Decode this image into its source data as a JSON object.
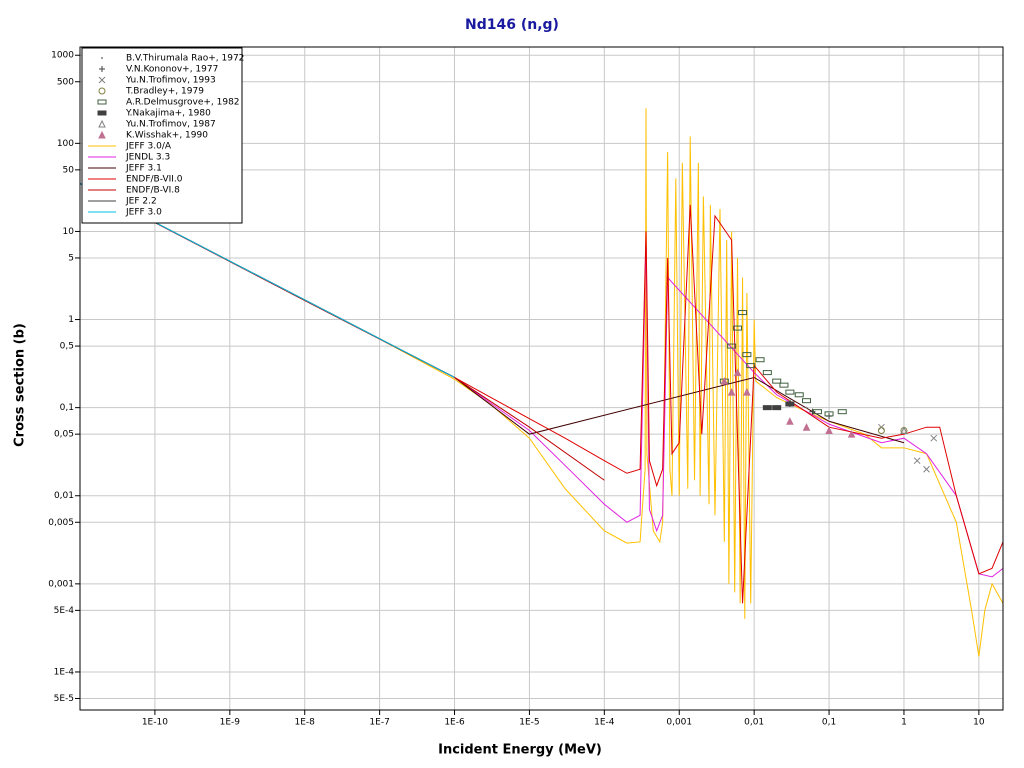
{
  "chart_data": {
    "type": "line",
    "title": "Nd146 (n,g)",
    "x_label": "Incident Energy (MeV)",
    "y_label": "Cross section (b)",
    "x_log": true,
    "y_log": true,
    "grid": true,
    "legend": "upper left",
    "xlim": [
      1e-11,
      21
    ],
    "ylim": [
      3.7e-05,
      1240
    ],
    "xticks": [
      {
        "value": 1e-10,
        "label": "1E-10"
      },
      {
        "value": 1e-09,
        "label": "1E-9"
      },
      {
        "value": 1e-08,
        "label": "1E-8"
      },
      {
        "value": 1e-07,
        "label": "1E-7"
      },
      {
        "value": 1e-06,
        "label": "1E-6"
      },
      {
        "value": 1e-05,
        "label": "1E-5"
      },
      {
        "value": 0.0001,
        "label": "1E-4"
      },
      {
        "value": 0.001,
        "label": "0,001"
      },
      {
        "value": 0.01,
        "label": "0,01"
      },
      {
        "value": 0.1,
        "label": "0,1"
      },
      1,
      10
    ],
    "yticks": [
      1000,
      500,
      100,
      50,
      10,
      5,
      1,
      {
        "value": 0.5,
        "label": "0,5"
      },
      {
        "value": 0.1,
        "label": "0,1"
      },
      {
        "value": 0.05,
        "label": "0,05"
      },
      {
        "value": 0.01,
        "label": "0,01"
      },
      {
        "value": 0.005,
        "label": "0,005"
      },
      {
        "value": 0.001,
        "label": "0,001"
      },
      {
        "value": 0.0005,
        "label": "5E-4"
      },
      {
        "value": 0.0001,
        "label": "1E-4"
      },
      {
        "value": 5e-05,
        "label": "5E-5"
      }
    ],
    "series": [
      {
        "name": "B.V.Thirumala Rao+, 1972",
        "type": "scatter",
        "marker": "dot",
        "color": "#808080",
        "x": [
          0.03,
          0.05
        ],
        "values": [
          0.12,
          0.1
        ]
      },
      {
        "name": "V.N.Kononov+, 1977",
        "type": "scatter",
        "marker": "plus",
        "color": "#404040",
        "x": [
          0.03,
          0.06,
          0.1
        ],
        "values": [
          0.11,
          0.09,
          0.08
        ]
      },
      {
        "name": "Yu.N.Trofimov, 1993",
        "type": "scatter",
        "marker": "cross",
        "color": "#808080",
        "x": [
          0.5,
          1.5,
          2,
          2.5
        ],
        "values": [
          0.06,
          0.025,
          0.02,
          0.045
        ]
      },
      {
        "name": "T.Bradley+, 1979",
        "type": "scatter",
        "marker": "circle",
        "color": "#808040",
        "x": [
          0.5,
          1
        ],
        "values": [
          0.055,
          0.055
        ]
      },
      {
        "name": "A.R.Delmusgrove+, 1982",
        "type": "scatter",
        "marker": "square",
        "color": "#406040",
        "x": [
          0.004,
          0.005,
          0.006,
          0.007,
          0.008,
          0.009,
          0.012,
          0.015,
          0.02,
          0.025,
          0.03,
          0.04,
          0.05,
          0.07,
          0.1,
          0.15
        ],
        "values": [
          0.2,
          0.5,
          0.8,
          1.2,
          0.4,
          0.3,
          0.35,
          0.25,
          0.2,
          0.18,
          0.15,
          0.14,
          0.12,
          0.09,
          0.085,
          0.09
        ]
      },
      {
        "name": "Y.Nakajima+, 1980",
        "type": "scatter",
        "marker": "filled-square",
        "color": "#404040",
        "x": [
          0.015,
          0.02,
          0.03
        ],
        "values": [
          0.1,
          0.1,
          0.11
        ]
      },
      {
        "name": "Yu.N.Trofimov, 1987",
        "type": "scatter",
        "marker": "triangle",
        "color": "#808080",
        "x": [
          1
        ],
        "values": [
          0.055
        ]
      },
      {
        "name": "K.Wisshak+, 1990",
        "type": "scatter",
        "marker": "filled-triangle",
        "color": "#c07090",
        "x": [
          0.004,
          0.005,
          0.006,
          0.008,
          0.03,
          0.05,
          0.1,
          0.2
        ],
        "values": [
          0.2,
          0.15,
          0.25,
          0.15,
          0.07,
          0.06,
          0.055,
          0.05
        ]
      },
      {
        "name": "JEFF 3.0/A",
        "type": "line",
        "color": "#ffc000",
        "x": [
          1e-11,
          1e-10,
          1e-09,
          1e-08,
          1e-07,
          1e-06,
          3e-06,
          1e-05,
          3e-05,
          0.0001,
          0.0002,
          0.0003,
          0.00035,
          0.00036,
          0.00037,
          0.00045,
          0.00055,
          0.0006,
          0.0007,
          0.00075,
          0.0008,
          0.0009,
          0.001,
          0.0011,
          0.0013,
          0.0014,
          0.0016,
          0.0018,
          0.0019,
          0.0021,
          0.0025,
          0.0026,
          0.003,
          0.0035,
          0.004,
          0.0043,
          0.0046,
          0.005,
          0.0055,
          0.006,
          0.0065,
          0.007,
          0.0075,
          0.008,
          0.009,
          0.01,
          0.0105,
          0.02,
          0.05,
          0.1,
          0.3,
          0.5,
          1,
          2,
          5,
          8,
          10,
          12,
          15,
          21
        ],
        "values": [
          35,
          12.6,
          4.6,
          1.65,
          0.6,
          0.21,
          0.11,
          0.045,
          0.012,
          0.004,
          0.0029,
          0.003,
          0.02,
          250,
          0.03,
          0.004,
          0.003,
          0.005,
          80,
          0.02,
          0.01,
          40,
          0.01,
          60,
          0.012,
          120,
          0.015,
          60,
          0.01,
          25,
          0.008,
          20,
          0.006,
          18,
          0.003,
          8,
          0.001,
          10,
          0.0008,
          5,
          0.0006,
          3,
          0.0004,
          2,
          0.0006,
          1,
          0.2,
          0.13,
          0.09,
          0.07,
          0.05,
          0.035,
          0.035,
          0.03,
          0.005,
          0.0005,
          0.00015,
          0.0005,
          0.001,
          0.0006
        ]
      },
      {
        "name": "JENDL 3.3",
        "type": "line",
        "color": "#e020e0",
        "x": [
          1e-11,
          1e-10,
          1e-08,
          1e-06,
          1e-05,
          3e-05,
          0.0001,
          0.0002,
          0.0003,
          0.00036,
          0.0004,
          0.0005,
          0.0006,
          0.0007,
          0.01,
          0.02,
          0.1,
          0.5,
          1,
          2,
          5,
          10,
          15,
          21
        ],
        "values": [
          35,
          12.6,
          1.65,
          0.22,
          0.055,
          0.022,
          0.008,
          0.005,
          0.006,
          8,
          0.007,
          0.004,
          0.006,
          3,
          0.25,
          0.14,
          0.065,
          0.04,
          0.045,
          0.03,
          0.01,
          0.0013,
          0.0012,
          0.0015
        ]
      },
      {
        "name": "JEFF 3.1",
        "type": "line",
        "color": "#400000",
        "x": [
          1e-11,
          1e-08,
          1e-06,
          1e-05,
          0.01,
          0.1,
          1
        ],
        "values": [
          35,
          1.65,
          0.22,
          0.05,
          0.22,
          0.07,
          0.04
        ]
      },
      {
        "name": "ENDF/B-VII.0",
        "type": "line",
        "color": "#e00000",
        "x": [
          1e-11,
          1e-10,
          1e-08,
          1e-06,
          1e-05,
          3e-05,
          0.0001,
          0.0002,
          0.0003,
          0.00036,
          0.0004,
          0.0005,
          0.0006,
          0.0007,
          0.0008,
          0.001,
          0.0014,
          0.002,
          0.003,
          0.005,
          0.007,
          0.01,
          0.02,
          0.1,
          0.5,
          1,
          2,
          3,
          5,
          10,
          15,
          21
        ],
        "values": [
          35,
          12.6,
          1.65,
          0.22,
          0.075,
          0.045,
          0.025,
          0.018,
          0.02,
          10,
          0.025,
          0.013,
          0.02,
          5,
          0.03,
          0.04,
          20,
          0.05,
          15,
          8,
          0.0006,
          0.3,
          0.15,
          0.06,
          0.045,
          0.05,
          0.06,
          0.06,
          0.01,
          0.0013,
          0.0015,
          0.003
        ]
      },
      {
        "name": "ENDF/B-VI.8",
        "type": "line",
        "color": "#c00000",
        "x": [
          1e-11,
          1e-06,
          1e-05,
          0.0001
        ],
        "values": [
          35,
          0.22,
          0.06,
          0.015
        ]
      },
      {
        "name": "JEF 2.2",
        "type": "line",
        "color": "#404040",
        "x": [
          1e-11,
          1e-06
        ],
        "values": [
          35,
          0.22
        ]
      },
      {
        "name": "JEFF 3.0",
        "type": "line",
        "color": "#00c0e0",
        "x": [
          1e-11,
          1e-06
        ],
        "values": [
          35,
          0.22
        ]
      }
    ]
  }
}
